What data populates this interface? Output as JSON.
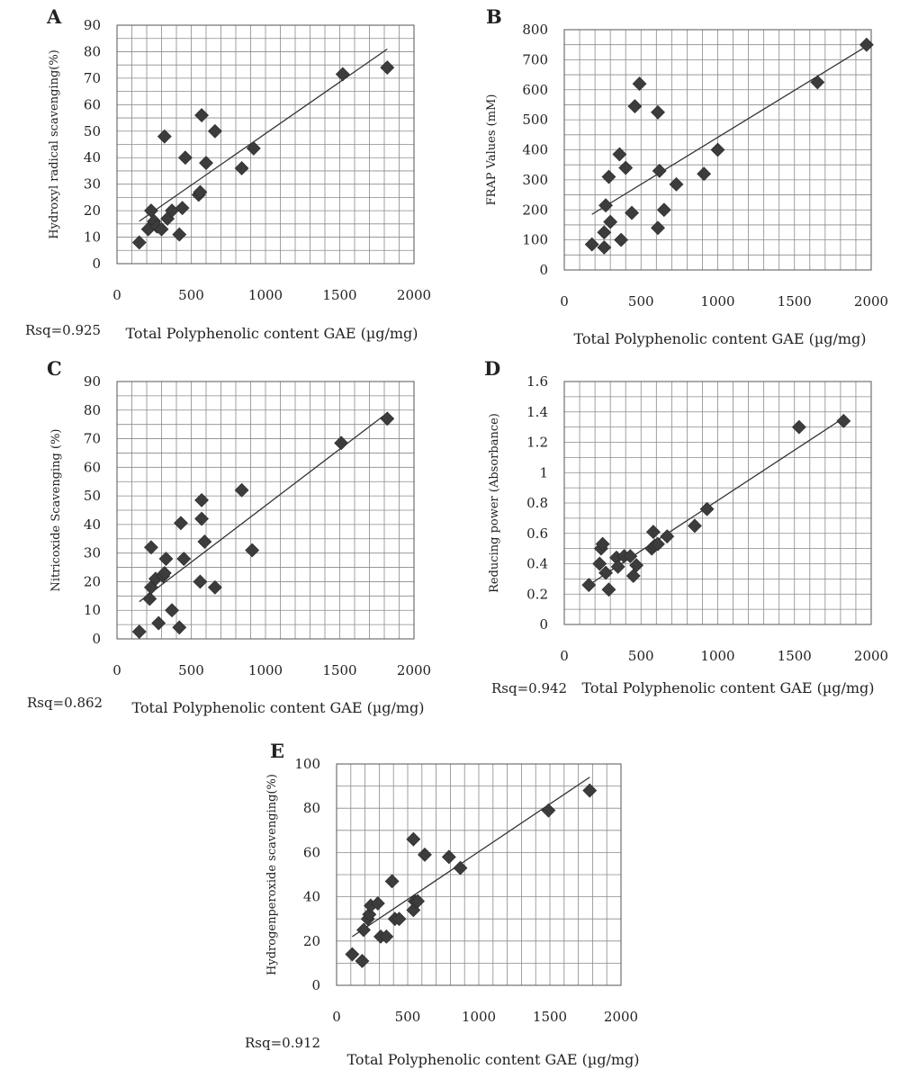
{
  "chart_data": [
    {
      "type": "scatter",
      "panel": "A",
      "xlabel": "Total Polyphenolic content GAE (µg/mg)",
      "ylabel": "Hydroxyl radical scavenging(%)",
      "rsq": "Rsq=0.925",
      "xlim": [
        0,
        2000
      ],
      "ylim": [
        0,
        90
      ],
      "xticks": [
        0,
        500,
        1000,
        1500,
        2000
      ],
      "yticks": [
        0,
        10,
        20,
        30,
        40,
        50,
        60,
        70,
        80,
        90
      ],
      "grid": true,
      "points": [
        [
          150,
          8
        ],
        [
          210,
          13
        ],
        [
          230,
          20
        ],
        [
          250,
          16
        ],
        [
          270,
          14
        ],
        [
          300,
          13
        ],
        [
          320,
          48
        ],
        [
          340,
          17
        ],
        [
          370,
          20
        ],
        [
          420,
          11
        ],
        [
          440,
          21
        ],
        [
          460,
          40
        ],
        [
          550,
          26
        ],
        [
          560,
          27
        ],
        [
          570,
          56
        ],
        [
          600,
          38
        ],
        [
          660,
          50
        ],
        [
          840,
          36
        ],
        [
          920,
          43.5
        ],
        [
          1520,
          71.5
        ],
        [
          1820,
          74
        ]
      ],
      "trendline": [
        [
          150,
          16
        ],
        [
          1820,
          81
        ]
      ]
    },
    {
      "type": "scatter",
      "panel": "B",
      "xlabel": "Total Polyphenolic content GAE (µg/mg)",
      "ylabel": "FRAP Values (mM)",
      "xlim": [
        0,
        2000
      ],
      "ylim": [
        0,
        800
      ],
      "xticks": [
        0,
        500,
        1000,
        1500,
        2000
      ],
      "yticks": [
        0,
        100,
        200,
        300,
        400,
        500,
        600,
        700,
        800
      ],
      "grid": true,
      "points": [
        [
          180,
          85
        ],
        [
          260,
          75
        ],
        [
          260,
          125
        ],
        [
          270,
          215
        ],
        [
          290,
          310
        ],
        [
          300,
          160
        ],
        [
          360,
          385
        ],
        [
          370,
          100
        ],
        [
          400,
          340
        ],
        [
          440,
          190
        ],
        [
          460,
          545
        ],
        [
          490,
          620
        ],
        [
          610,
          525
        ],
        [
          610,
          140
        ],
        [
          620,
          330
        ],
        [
          650,
          200
        ],
        [
          730,
          285
        ],
        [
          910,
          320
        ],
        [
          1000,
          400
        ],
        [
          1650,
          625
        ],
        [
          1970,
          750
        ]
      ],
      "trendline": [
        [
          180,
          185
        ],
        [
          1970,
          745
        ]
      ]
    },
    {
      "type": "scatter",
      "panel": "C",
      "xlabel": "Total Polyphenolic content GAE (µg/mg)",
      "ylabel": "Nitricoxide Scavenging (%)",
      "rsq": "Rsq=0.862",
      "xlim": [
        0,
        2000
      ],
      "ylim": [
        0,
        90
      ],
      "xticks": [
        0,
        500,
        1000,
        1500,
        2000
      ],
      "yticks": [
        0,
        10,
        20,
        30,
        40,
        50,
        60,
        70,
        80,
        90
      ],
      "grid": true,
      "points": [
        [
          150,
          2.5
        ],
        [
          220,
          14
        ],
        [
          230,
          18
        ],
        [
          230,
          32
        ],
        [
          260,
          21
        ],
        [
          280,
          5.5
        ],
        [
          310,
          22
        ],
        [
          320,
          23
        ],
        [
          330,
          28
        ],
        [
          370,
          10
        ],
        [
          420,
          4
        ],
        [
          430,
          40.5
        ],
        [
          450,
          28
        ],
        [
          560,
          20
        ],
        [
          570,
          42
        ],
        [
          570,
          48.5
        ],
        [
          590,
          34
        ],
        [
          660,
          18
        ],
        [
          840,
          52
        ],
        [
          910,
          31
        ],
        [
          1510,
          68.5
        ],
        [
          1820,
          77
        ]
      ],
      "trendline": [
        [
          150,
          13
        ],
        [
          1820,
          79
        ]
      ]
    },
    {
      "type": "scatter",
      "panel": "D",
      "xlabel": "Total Polyphenolic content GAE (µg/mg)",
      "ylabel": "Reducing power (Absorbance)",
      "rsq": "Rsq=0.942",
      "xlim": [
        0,
        2000
      ],
      "ylim": [
        0,
        1.6
      ],
      "xticks": [
        0,
        500,
        1000,
        1500,
        2000
      ],
      "yticks": [
        0,
        0.2,
        0.4,
        0.6,
        0.8,
        1,
        1.2,
        1.4,
        1.6
      ],
      "grid": true,
      "points": [
        [
          160,
          0.26
        ],
        [
          230,
          0.4
        ],
        [
          240,
          0.5
        ],
        [
          250,
          0.53
        ],
        [
          270,
          0.34
        ],
        [
          290,
          0.23
        ],
        [
          340,
          0.44
        ],
        [
          350,
          0.38
        ],
        [
          390,
          0.45
        ],
        [
          430,
          0.45
        ],
        [
          450,
          0.32
        ],
        [
          470,
          0.39
        ],
        [
          570,
          0.5
        ],
        [
          580,
          0.61
        ],
        [
          590,
          0.52
        ],
        [
          610,
          0.53
        ],
        [
          670,
          0.58
        ],
        [
          850,
          0.65
        ],
        [
          930,
          0.76
        ],
        [
          1530,
          1.3
        ],
        [
          1820,
          1.34
        ]
      ],
      "trendline": [
        [
          160,
          0.26
        ],
        [
          1820,
          1.36
        ]
      ]
    },
    {
      "type": "scatter",
      "panel": "E",
      "xlabel": "Total Polyphenolic content GAE (µg/mg)",
      "ylabel": "Hydrogenperoxide scavenging(%)",
      "rsq": "Rsq=0.912",
      "xlim": [
        0,
        2000
      ],
      "ylim": [
        0,
        100
      ],
      "xticks": [
        0,
        500,
        1000,
        1500,
        2000
      ],
      "yticks": [
        0,
        20,
        40,
        60,
        80,
        100
      ],
      "grid": true,
      "points": [
        [
          110,
          14
        ],
        [
          180,
          11
        ],
        [
          190,
          25
        ],
        [
          220,
          30
        ],
        [
          230,
          32
        ],
        [
          240,
          36
        ],
        [
          290,
          37
        ],
        [
          310,
          22
        ],
        [
          350,
          22
        ],
        [
          390,
          47
        ],
        [
          410,
          30
        ],
        [
          440,
          30
        ],
        [
          540,
          34
        ],
        [
          540,
          66
        ],
        [
          550,
          38
        ],
        [
          570,
          38
        ],
        [
          620,
          59
        ],
        [
          790,
          58
        ],
        [
          870,
          53
        ],
        [
          1490,
          79
        ],
        [
          1780,
          88
        ]
      ],
      "trendline": [
        [
          110,
          22
        ],
        [
          1780,
          94
        ]
      ]
    }
  ]
}
